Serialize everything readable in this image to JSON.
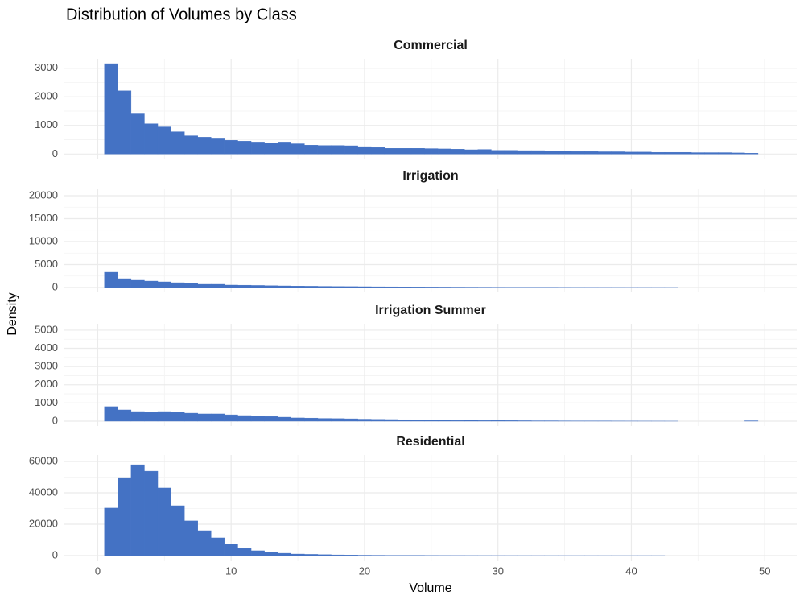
{
  "title": "Distribution of Volumes by Class",
  "xlabel": "Volume",
  "ylabel": "Density",
  "chart_data": [
    {
      "type": "histogram",
      "title": "Commercial",
      "color": "#4472c4",
      "grid": true,
      "bins": [
        0.5,
        1.5,
        2.5,
        3.5,
        4.5,
        5.5,
        6.5,
        7.5,
        8.5,
        9.5,
        10.5,
        11.5,
        12.5,
        13.5,
        14.5,
        15.5,
        16.5,
        17.5,
        18.5,
        19.5,
        20.5,
        21.5,
        22.5,
        23.5,
        24.5,
        25.5,
        26.5,
        27.5,
        28.5,
        29.5,
        30.5,
        31.5,
        32.5,
        33.5,
        34.5,
        35.5,
        36.5,
        37.5,
        38.5,
        39.5,
        40.5,
        41.5,
        42.5,
        43.5,
        44.5,
        45.5,
        46.5,
        47.5,
        48.5,
        49.5
      ],
      "values": [
        3160,
        2210,
        1430,
        1060,
        950,
        780,
        640,
        590,
        560,
        480,
        450,
        420,
        390,
        420,
        360,
        310,
        300,
        300,
        290,
        260,
        230,
        200,
        200,
        200,
        190,
        180,
        170,
        150,
        160,
        130,
        130,
        120,
        120,
        110,
        100,
        90,
        90,
        80,
        80,
        70,
        70,
        60,
        60,
        60,
        50,
        50,
        50,
        40,
        30
      ],
      "xlim": [
        -2.5,
        52.4
      ],
      "xticks": [
        0,
        10,
        20,
        30,
        40,
        50
      ],
      "ylim": [
        -160,
        3330
      ],
      "yticks": [
        0,
        1000,
        2000,
        3000
      ]
    },
    {
      "type": "histogram",
      "title": "Irrigation",
      "color": "#4472c4",
      "grid": true,
      "bins": [
        0.5,
        1.5,
        2.5,
        3.5,
        4.5,
        5.5,
        6.5,
        7.5,
        8.5,
        9.5,
        10.5,
        11.5,
        12.5,
        13.5,
        14.5,
        15.5,
        16.5,
        17.5,
        18.5,
        19.5,
        20.5,
        21.5,
        22.5,
        23.5,
        24.5,
        25.5,
        26.5,
        27.5,
        28.5,
        29.5,
        30.5,
        31.5,
        32.5,
        33.5,
        34.5,
        35.5,
        36.5,
        37.5,
        38.5,
        39.5,
        40.5,
        41.5,
        42.5,
        43.5,
        44.5,
        45.5,
        46.5,
        47.5,
        48.5,
        49.5
      ],
      "values": [
        3330,
        1930,
        1580,
        1400,
        1230,
        1050,
        880,
        700,
        700,
        530,
        500,
        450,
        400,
        350,
        300,
        280,
        250,
        220,
        200,
        180,
        160,
        150,
        130,
        120,
        110,
        100,
        90,
        80,
        70,
        60,
        55,
        50,
        45,
        40,
        35,
        30,
        28,
        25,
        22,
        20,
        18,
        16,
        14,
        0,
        0,
        0,
        0,
        0,
        0
      ],
      "xlim": [
        -2.5,
        52.4
      ],
      "xticks": [
        0,
        10,
        20,
        30,
        40,
        50
      ],
      "ylim": [
        -1050,
        21400
      ],
      "yticks": [
        0,
        5000,
        10000,
        15000,
        20000
      ]
    },
    {
      "type": "histogram",
      "title": "Irrigation Summer",
      "color": "#4472c4",
      "grid": true,
      "bins": [
        0.5,
        1.5,
        2.5,
        3.5,
        4.5,
        5.5,
        6.5,
        7.5,
        8.5,
        9.5,
        10.5,
        11.5,
        12.5,
        13.5,
        14.5,
        15.5,
        16.5,
        17.5,
        18.5,
        19.5,
        20.5,
        21.5,
        22.5,
        23.5,
        24.5,
        25.5,
        26.5,
        27.5,
        28.5,
        29.5,
        30.5,
        31.5,
        32.5,
        33.5,
        34.5,
        35.5,
        36.5,
        37.5,
        38.5,
        39.5,
        40.5,
        41.5,
        42.5,
        43.5,
        44.5,
        45.5,
        46.5,
        47.5,
        48.5,
        49.5
      ],
      "values": [
        800,
        620,
        530,
        490,
        530,
        490,
        440,
        400,
        400,
        350,
        310,
        270,
        260,
        220,
        180,
        170,
        150,
        140,
        130,
        110,
        100,
        90,
        80,
        70,
        60,
        50,
        40,
        60,
        30,
        40,
        30,
        25,
        20,
        20,
        15,
        12,
        10,
        10,
        8,
        6,
        5,
        4,
        3,
        0,
        0,
        0,
        0,
        0,
        20
      ],
      "xlim": [
        -2.5,
        52.4
      ],
      "xticks": [
        0,
        10,
        20,
        30,
        40,
        50
      ],
      "ylim": [
        -265,
        5350
      ],
      "yticks": [
        0,
        1000,
        2000,
        3000,
        4000,
        5000
      ]
    },
    {
      "type": "histogram",
      "title": "Residential",
      "color": "#4472c4",
      "grid": true,
      "bins": [
        0.5,
        1.5,
        2.5,
        3.5,
        4.5,
        5.5,
        6.5,
        7.5,
        8.5,
        9.5,
        10.5,
        11.5,
        12.5,
        13.5,
        14.5,
        15.5,
        16.5,
        17.5,
        18.5,
        19.5,
        20.5,
        21.5,
        22.5,
        23.5,
        24.5,
        25.5,
        26.5,
        27.5,
        28.5,
        29.5,
        30.5,
        31.5,
        32.5,
        33.5,
        34.5,
        35.5,
        36.5,
        37.5,
        38.5,
        39.5,
        40.5,
        41.5,
        42.5,
        43.5,
        44.5,
        45.5,
        46.5,
        47.5,
        48.5,
        49.5
      ],
      "values": [
        30300,
        49700,
        57900,
        53800,
        43100,
        31800,
        22100,
        15900,
        11300,
        7200,
        4600,
        3100,
        2100,
        1500,
        1000,
        800,
        600,
        450,
        350,
        250,
        200,
        150,
        120,
        100,
        80,
        60,
        50,
        40,
        30,
        25,
        20,
        15,
        12,
        10,
        8,
        6,
        5,
        4,
        3,
        2,
        2,
        1,
        0,
        0,
        0,
        0,
        0,
        0,
        0
      ],
      "xlim": [
        -2.5,
        52.4
      ],
      "xticks": [
        0,
        10,
        20,
        30,
        40,
        50
      ],
      "ylim": [
        -3080,
        64100
      ],
      "yticks": [
        0,
        20000,
        40000,
        60000
      ]
    }
  ]
}
